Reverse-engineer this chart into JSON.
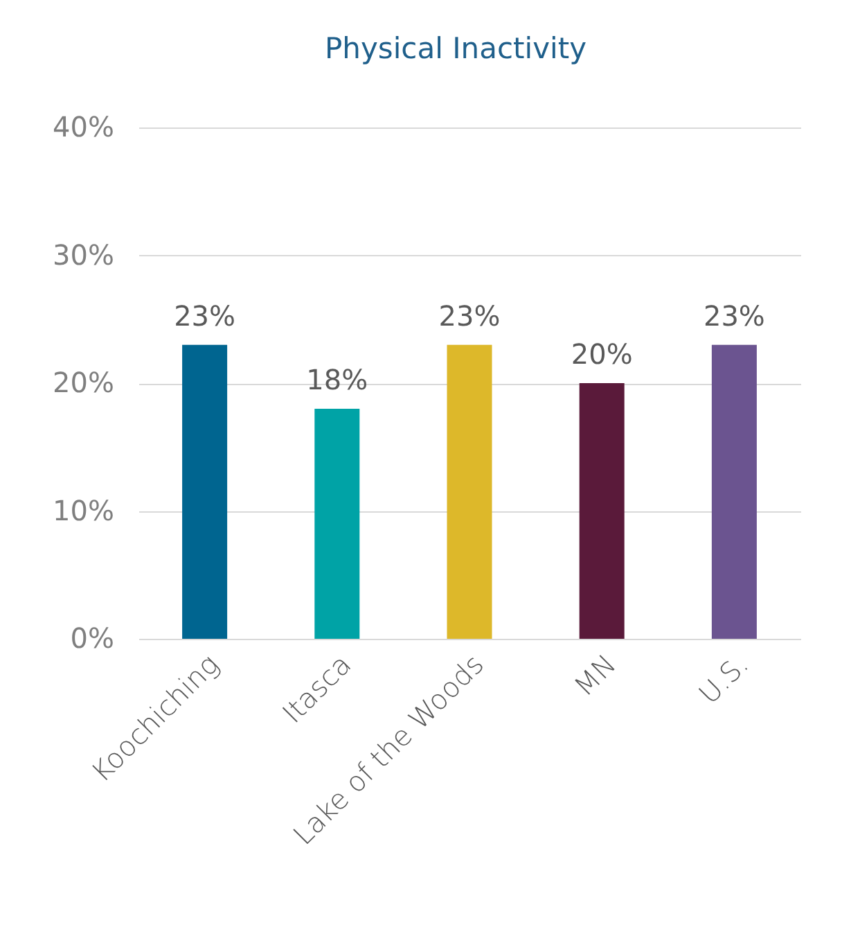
{
  "chart_data": {
    "type": "bar",
    "title": "Physical Inactivity",
    "categories": [
      "Koochiching",
      "Itasca",
      "Lake of the Woods",
      "MN",
      "U.S."
    ],
    "values": [
      23,
      18,
      23,
      20,
      23
    ],
    "colors": [
      "#006590",
      "#00a3a6",
      "#ddb82a",
      "#5a1a3a",
      "#6b5490"
    ],
    "value_labels": [
      "23%",
      "18%",
      "23%",
      "20%",
      "23%"
    ],
    "ylim": [
      0,
      40
    ],
    "yticks": [
      {
        "value": 0,
        "label": "0%"
      },
      {
        "value": 10,
        "label": "10%"
      },
      {
        "value": 20,
        "label": "20%"
      },
      {
        "value": 30,
        "label": "30%"
      },
      {
        "value": 40,
        "label": "40%"
      }
    ],
    "grid": "y"
  }
}
